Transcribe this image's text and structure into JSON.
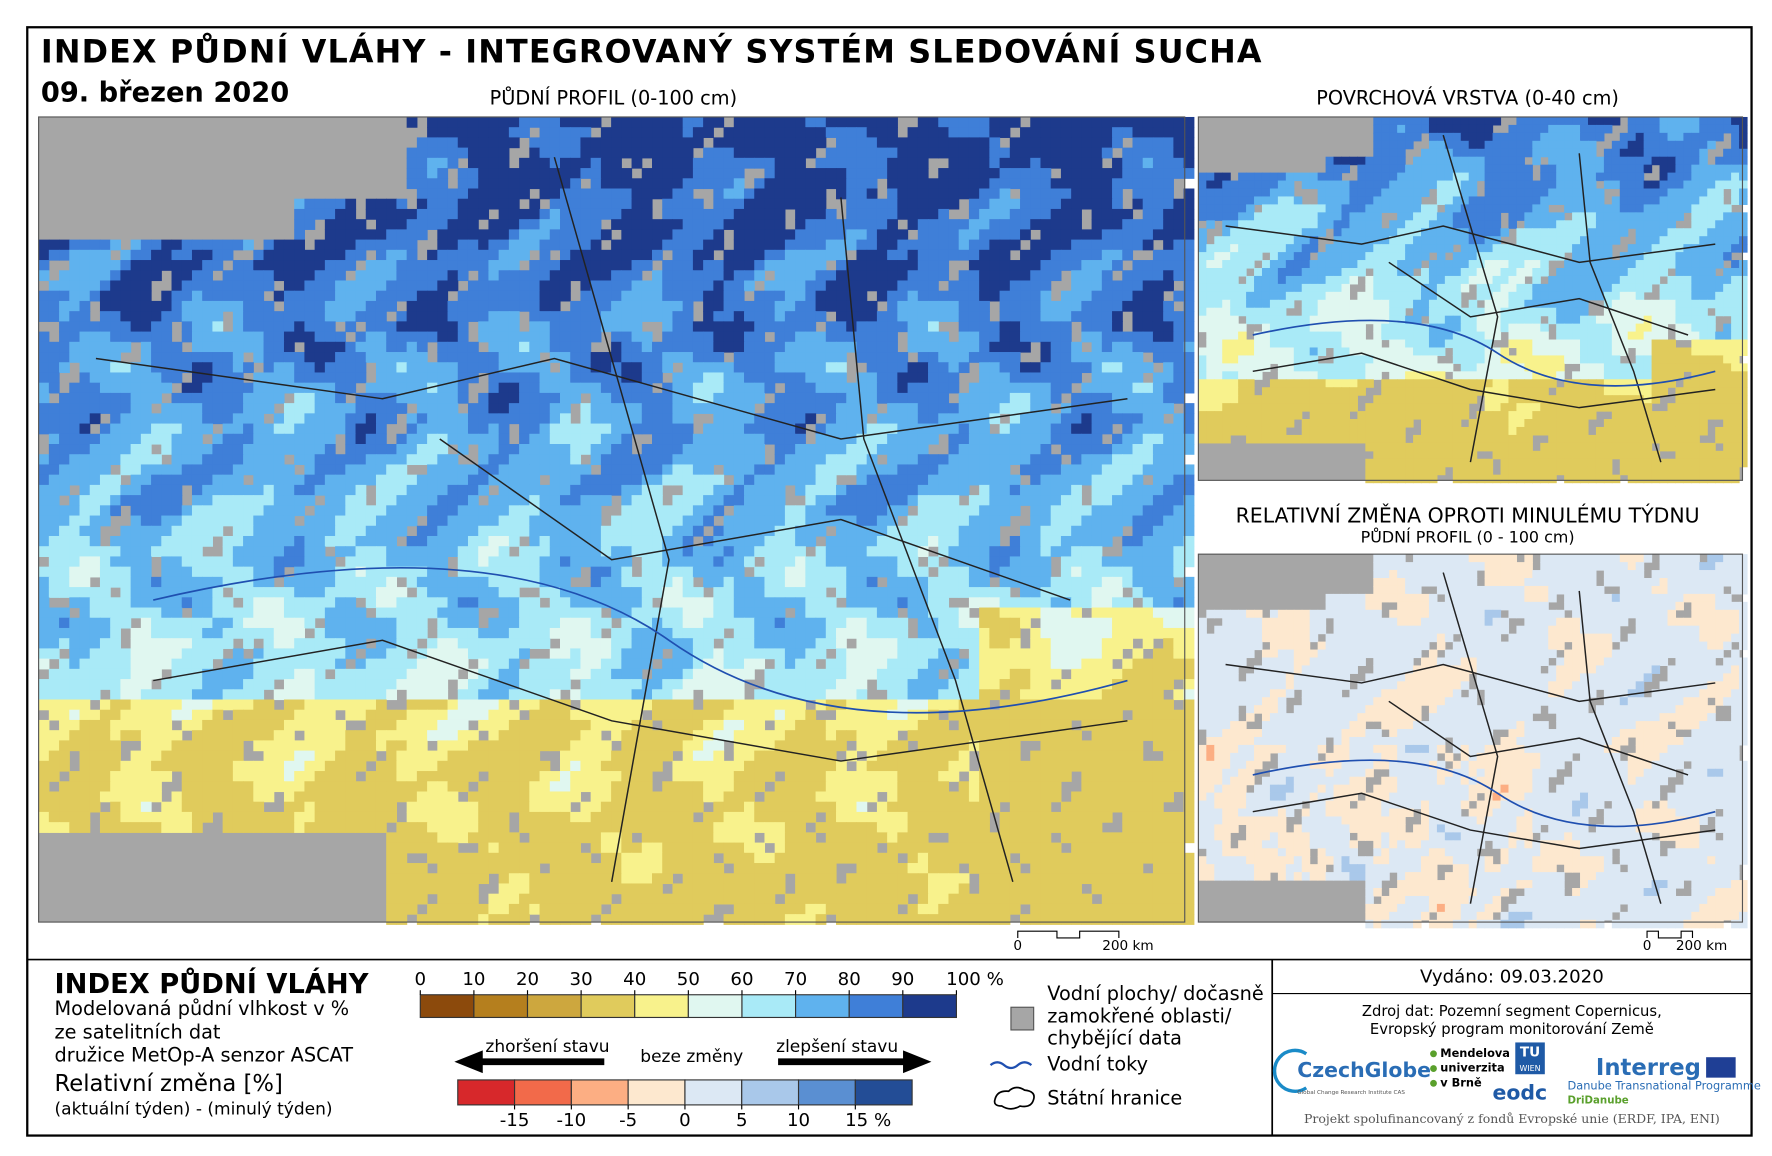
{
  "header": {
    "title": "INDEX PŮDNÍ VLÁHY - INTEGROVANÝ SYSTÉM SLEDOVÁNÍ SUCHA",
    "date": "09. březen 2020"
  },
  "maps": [
    {
      "title": "PŮDNÍ PROFIL (0-100 cm)"
    },
    {
      "title": "POVRCHOVÁ VRSTVA (0-40 cm)"
    },
    {
      "title": "RELATIVNÍ ZMĚNA OPROTI MINULÉMU TÝDNU",
      "subtitle": "PŮDNÍ PROFIL (0 - 100 cm)"
    }
  ],
  "scale_labels": [
    "0",
    "200 km"
  ],
  "legend": {
    "title": "INDEX PŮDNÍ VLÁHY",
    "description": [
      "Modelovaná půdní vlhkost v %",
      "ze satelitních dat",
      "družice MetOp-A senzor ASCAT"
    ],
    "change_title": "Relativní změna [%]",
    "change_description": "(aktuální týden) - (minulý týden)",
    "index_lim": [
      0,
      100
    ],
    "index_ticks": [
      0,
      10,
      20,
      30,
      40,
      50,
      60,
      70,
      80,
      90,
      {
        "value": 100,
        "label": "100 %"
      }
    ],
    "index_colors": [
      "#8c4a0c",
      "#b57f1e",
      "#cda73e",
      "#e0cb5c",
      "#f8f28c",
      "#e0f7f0",
      "#a9eaf7",
      "#5fb2ee",
      "#3f7fd8",
      "#1d3a8c"
    ],
    "arrows": {
      "worse": "zhoršení stavu",
      "same": "beze změny",
      "better": "zlepšení stavu"
    },
    "change_lim": [
      -20,
      20
    ],
    "change_ticks": [
      -15,
      -10,
      -5,
      0,
      5,
      10,
      {
        "value": 15,
        "label": "15 %"
      }
    ],
    "change_colors": [
      "#d7282b",
      "#f26a4a",
      "#fcae83",
      "#fde8cf",
      "#dce8f4",
      "#a9c8ea",
      "#5a8fd2",
      "#234d96"
    ],
    "symbols": {
      "water": [
        "Vodní plochy/ dočasně",
        "zamokřené oblasti/",
        "chybějící data"
      ],
      "rivers": "Vodní toky",
      "borders": "Státní hranice"
    }
  },
  "footer": {
    "issued": "Vydáno: 09.03.2020",
    "source": [
      "Zdroj dat: Pozemní segment Copernicus,",
      "Evropský program monitorování Země"
    ],
    "logos": {
      "czechglobe": "CzechGlobe",
      "czechglobe_sub": "Global Change Research Institute CAS",
      "mendel": [
        "Mendelova",
        "univerzita",
        "v Brně"
      ],
      "tu": [
        "TU",
        "WIEN"
      ],
      "eodc": "eodc",
      "interreg": "Interreg",
      "interreg_sub": [
        "Danube Transnational Programme",
        "DriDanube"
      ]
    },
    "funding": "Projekt spolufinancovaný z fondů Evropské unie (ERDF, IPA, ENI)"
  }
}
